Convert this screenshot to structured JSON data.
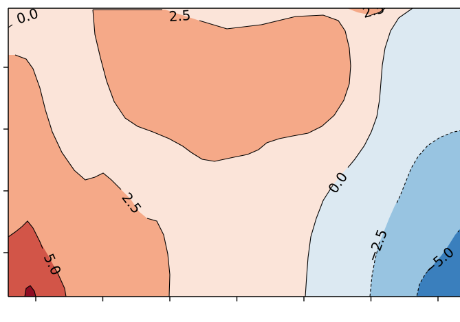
{
  "chart_data": {
    "type": "contour",
    "title": "",
    "xlabel": "",
    "ylabel": "",
    "colormap": "RdBu_r",
    "levels": [
      -7.5,
      -5.0,
      -2.5,
      0.0,
      2.5,
      5.0,
      7.5
    ],
    "level_colors": {
      "lt_-5": "#3a7fbd",
      "-5_to_-2.5": "#98c4e1",
      "-2.5_to_0": "#dce9f2",
      "0_to_2.5": "#fbe4d9",
      "2.5_to_5": "#f5a988",
      "5_to_7.5": "#d25548",
      "gt_7.5": "#8f0c23"
    },
    "contour_labels": [
      {
        "text": "0.0",
        "level": 0.0
      },
      {
        "text": "2.5",
        "level": 2.5
      },
      {
        "text": "2.5",
        "level": 2.5
      },
      {
        "text": "2.5",
        "level": 2.5
      },
      {
        "text": "5.0",
        "level": 5.0
      },
      {
        "text": "0.0",
        "level": 0.0
      },
      {
        "text": "−2.5",
        "level": -2.5
      },
      {
        "text": "−5.0",
        "level": -5.0
      }
    ],
    "x_ticks": 7,
    "y_ticks": 4,
    "negative_contours_dashed": true
  }
}
